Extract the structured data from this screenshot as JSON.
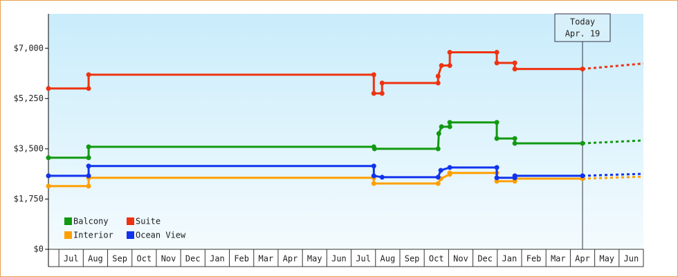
{
  "chart_data": {
    "type": "line",
    "xlim": [
      -0.43,
      24
    ],
    "ylim": [
      0,
      8200
    ],
    "yticks": [
      {
        "value": 0,
        "label": "$0"
      },
      {
        "value": 1750,
        "label": "$1,750"
      },
      {
        "value": 3500,
        "label": "$3,500"
      },
      {
        "value": 5250,
        "label": "$5,250"
      },
      {
        "value": 7000,
        "label": "$7,000"
      }
    ],
    "xticks": [
      {
        "value": 0.5,
        "label": "Jul"
      },
      {
        "value": 1.5,
        "label": "Aug"
      },
      {
        "value": 2.5,
        "label": "Sep"
      },
      {
        "value": 3.5,
        "label": "Oct"
      },
      {
        "value": 4.5,
        "label": "Nov"
      },
      {
        "value": 5.5,
        "label": "Dec"
      },
      {
        "value": 6.5,
        "label": "Jan"
      },
      {
        "value": 7.5,
        "label": "Feb"
      },
      {
        "value": 8.5,
        "label": "Mar"
      },
      {
        "value": 9.5,
        "label": "Apr"
      },
      {
        "value": 10.5,
        "label": "May"
      },
      {
        "value": 11.5,
        "label": "Jun"
      },
      {
        "value": 12.5,
        "label": "Jul"
      },
      {
        "value": 13.5,
        "label": "Aug"
      },
      {
        "value": 14.5,
        "label": "Sep"
      },
      {
        "value": 15.5,
        "label": "Oct"
      },
      {
        "value": 16.5,
        "label": "Nov"
      },
      {
        "value": 17.5,
        "label": "Dec"
      },
      {
        "value": 18.5,
        "label": "Jan"
      },
      {
        "value": 19.5,
        "label": "Feb"
      },
      {
        "value": 20.5,
        "label": "Mar"
      },
      {
        "value": 21.5,
        "label": "Apr"
      },
      {
        "value": 22.5,
        "label": "May"
      },
      {
        "value": 23.5,
        "label": "Jun"
      }
    ],
    "annotation": {
      "x": 21.5,
      "lines": [
        "Today",
        "Apr. 19"
      ]
    },
    "legend": "lower left",
    "series": [
      {
        "name": "Balcony",
        "color": "#119911",
        "x": [
          -0.43,
          1.22,
          1.22,
          12.93,
          12.96,
          15.57,
          15.6,
          15.71,
          16.05,
          16.05,
          17.98,
          17.98,
          18.72,
          18.72,
          21.5
        ],
        "values": [
          3190,
          3190,
          3570,
          3570,
          3500,
          3500,
          4030,
          4270,
          4270,
          4420,
          4420,
          3860,
          3860,
          3690,
          3690
        ],
        "forecast": {
          "x": [
            21.5,
            24
          ],
          "values": [
            3690,
            3790
          ]
        }
      },
      {
        "name": "Suite",
        "color": "#ee3311",
        "x": [
          -0.43,
          1.22,
          1.22,
          12.93,
          12.93,
          13.27,
          13.27,
          15.57,
          15.57,
          15.71,
          16.05,
          16.05,
          17.98,
          17.98,
          18.72,
          18.72,
          21.5
        ],
        "values": [
          5600,
          5600,
          6080,
          6080,
          5430,
          5430,
          5790,
          5790,
          6030,
          6400,
          6400,
          6860,
          6860,
          6490,
          6490,
          6280,
          6280
        ],
        "forecast": {
          "x": [
            21.5,
            24
          ],
          "values": [
            6280,
            6470
          ]
        }
      },
      {
        "name": "Interior",
        "color": "#ffa000",
        "x": [
          -0.43,
          1.22,
          1.22,
          12.93,
          12.93,
          15.57,
          15.68,
          16.05,
          16.05,
          17.98,
          17.98,
          18.72,
          18.72,
          21.5
        ],
        "values": [
          2200,
          2200,
          2490,
          2490,
          2290,
          2290,
          2460,
          2610,
          2660,
          2660,
          2370,
          2370,
          2460,
          2460
        ],
        "forecast": {
          "x": [
            21.5,
            24
          ],
          "values": [
            2460,
            2530
          ]
        }
      },
      {
        "name": "Ocean View",
        "color": "#1133ee",
        "x": [
          -0.43,
          1.22,
          1.22,
          12.93,
          12.93,
          13.27,
          15.57,
          15.68,
          16.05,
          17.98,
          17.98,
          18.72,
          18.72,
          21.5
        ],
        "values": [
          2560,
          2560,
          2900,
          2900,
          2560,
          2510,
          2510,
          2750,
          2850,
          2850,
          2490,
          2490,
          2560,
          2560
        ],
        "forecast": {
          "x": [
            21.5,
            24
          ],
          "values": [
            2560,
            2630
          ]
        }
      }
    ]
  }
}
